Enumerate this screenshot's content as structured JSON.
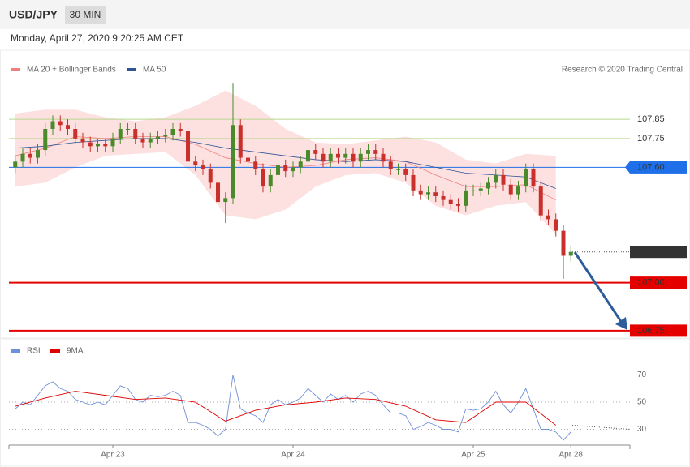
{
  "header": {
    "symbol": "USD/JPY",
    "interval": "30 MIN",
    "timestamp": "Monday, April 27, 2020 9:20:25 AM CET"
  },
  "credit": "Research © 2020 Trading Central",
  "chart_data": [
    {
      "type": "candlestick",
      "categories": [
        null,
        null,
        null,
        null,
        null,
        null,
        null,
        null,
        null,
        null,
        null,
        null,
        null,
        "Apr 23",
        null,
        null,
        null,
        null,
        null,
        null,
        null,
        null,
        null,
        null,
        null,
        null,
        null,
        null,
        null,
        null,
        null,
        null,
        null,
        null,
        null,
        null,
        null,
        "Apr 24",
        null,
        null,
        null,
        null,
        null,
        null,
        null,
        null,
        null,
        null,
        null,
        null,
        null,
        null,
        null,
        null,
        null,
        null,
        null,
        null,
        null,
        null,
        null,
        "Apr 25",
        null,
        null,
        null,
        null,
        null,
        null,
        null,
        null,
        null,
        null,
        null,
        null,
        "Apr 28"
      ],
      "open": [
        107.6,
        107.63,
        107.67,
        107.65,
        107.69,
        107.8,
        107.84,
        107.82,
        107.8,
        107.75,
        107.73,
        107.71,
        107.72,
        107.71,
        107.75,
        107.8,
        107.8,
        107.75,
        107.73,
        107.75,
        107.76,
        107.77,
        107.8,
        107.79,
        107.63,
        107.61,
        107.59,
        107.52,
        107.42,
        107.44,
        107.82,
        107.65,
        107.63,
        107.59,
        107.5,
        107.56,
        107.61,
        107.58,
        107.6,
        107.63,
        107.69,
        107.67,
        107.63,
        107.67,
        107.65,
        107.67,
        107.63,
        107.67,
        107.69,
        107.67,
        107.63,
        107.59,
        107.59,
        107.56,
        107.48,
        107.46,
        107.47,
        107.45,
        107.43,
        107.41,
        107.4,
        107.48,
        107.48,
        107.49,
        107.52,
        107.56,
        107.51,
        107.46,
        107.5,
        107.59,
        107.5,
        107.35,
        107.33,
        107.27,
        107.14
      ],
      "high": [
        107.66,
        107.7,
        107.7,
        107.72,
        107.83,
        107.87,
        107.87,
        107.85,
        107.83,
        107.78,
        107.76,
        107.75,
        107.75,
        107.78,
        107.83,
        107.83,
        107.83,
        107.78,
        107.78,
        107.79,
        107.8,
        107.83,
        107.83,
        107.82,
        107.66,
        107.64,
        107.62,
        107.55,
        107.47,
        108.04,
        107.85,
        107.68,
        107.66,
        107.62,
        107.59,
        107.64,
        107.64,
        107.63,
        107.66,
        107.72,
        107.72,
        107.7,
        107.7,
        107.7,
        107.7,
        107.7,
        107.7,
        107.72,
        107.72,
        107.7,
        107.66,
        107.62,
        107.62,
        107.59,
        107.51,
        107.5,
        107.5,
        107.48,
        107.46,
        107.44,
        107.51,
        107.51,
        107.52,
        107.55,
        107.59,
        107.59,
        107.54,
        107.53,
        107.62,
        107.62,
        107.53,
        107.38,
        107.36,
        107.3,
        107.19
      ],
      "low": [
        107.57,
        107.6,
        107.62,
        107.62,
        107.66,
        107.77,
        107.79,
        107.77,
        107.72,
        107.7,
        107.68,
        107.68,
        107.68,
        107.68,
        107.72,
        107.77,
        107.72,
        107.7,
        107.7,
        107.72,
        107.73,
        107.74,
        107.76,
        107.6,
        107.58,
        107.56,
        107.49,
        107.39,
        107.31,
        107.41,
        107.62,
        107.6,
        107.56,
        107.47,
        107.47,
        107.53,
        107.55,
        107.55,
        107.57,
        107.6,
        107.64,
        107.6,
        107.6,
        107.62,
        107.62,
        107.6,
        107.6,
        107.64,
        107.64,
        107.6,
        107.56,
        107.56,
        107.53,
        107.45,
        107.43,
        107.43,
        107.42,
        107.4,
        107.38,
        107.37,
        107.37,
        107.45,
        107.45,
        107.46,
        107.49,
        107.48,
        107.43,
        107.43,
        107.47,
        107.47,
        107.32,
        107.3,
        107.24,
        107.02,
        107.11
      ],
      "close": [
        107.63,
        107.67,
        107.65,
        107.69,
        107.8,
        107.84,
        107.82,
        107.8,
        107.75,
        107.73,
        107.71,
        107.72,
        107.71,
        107.75,
        107.8,
        107.8,
        107.75,
        107.73,
        107.75,
        107.76,
        107.77,
        107.8,
        107.79,
        107.63,
        107.61,
        107.59,
        107.52,
        107.42,
        107.44,
        107.82,
        107.65,
        107.63,
        107.59,
        107.5,
        107.56,
        107.61,
        107.58,
        107.6,
        107.63,
        107.69,
        107.67,
        107.63,
        107.67,
        107.65,
        107.67,
        107.63,
        107.67,
        107.69,
        107.67,
        107.63,
        107.59,
        107.59,
        107.56,
        107.48,
        107.46,
        107.47,
        107.45,
        107.43,
        107.41,
        107.4,
        107.48,
        107.48,
        107.49,
        107.52,
        107.56,
        107.51,
        107.46,
        107.5,
        107.59,
        107.5,
        107.35,
        107.33,
        107.27,
        107.14,
        107.16
      ],
      "up_color": "#4b8a2b",
      "down_color": "#c9302c",
      "series": [
        {
          "name": "MA 20 + Bollinger Bands",
          "color": "#f08080",
          "band_color": "#fde0e0",
          "x": [
            0,
            4,
            8,
            12,
            16,
            20,
            24,
            28,
            32,
            36,
            40,
            44,
            48,
            52,
            56,
            60,
            64,
            68,
            72
          ],
          "values": [
            107.66,
            107.7,
            107.76,
            107.75,
            107.76,
            107.76,
            107.72,
            107.65,
            107.62,
            107.6,
            107.61,
            107.64,
            107.65,
            107.63,
            107.56,
            107.5,
            107.5,
            107.51,
            107.43
          ],
          "upper": [
            107.88,
            107.9,
            107.9,
            107.86,
            107.84,
            107.86,
            107.92,
            108.0,
            107.92,
            107.8,
            107.73,
            107.72,
            107.74,
            107.76,
            107.73,
            107.64,
            107.62,
            107.67,
            107.66
          ],
          "lower": [
            107.5,
            107.52,
            107.6,
            107.66,
            107.67,
            107.68,
            107.56,
            107.35,
            107.33,
            107.38,
            107.5,
            107.56,
            107.57,
            107.52,
            107.4,
            107.35,
            107.4,
            107.42,
            107.25
          ]
        },
        {
          "name": "MA 50",
          "color": "#2f5597",
          "x": [
            0,
            4,
            8,
            12,
            16,
            20,
            24,
            28,
            32,
            36,
            40,
            44,
            48,
            52,
            56,
            60,
            64,
            68,
            72
          ],
          "values": [
            107.7,
            107.71,
            107.73,
            107.74,
            107.75,
            107.75,
            107.73,
            107.7,
            107.68,
            107.66,
            107.64,
            107.63,
            107.64,
            107.63,
            107.6,
            107.57,
            107.56,
            107.55,
            107.49
          ]
        }
      ],
      "levels": [
        {
          "value": 107.85,
          "color": "#b9d88e",
          "text_color": "#5d9a24",
          "style": "plain"
        },
        {
          "value": 107.75,
          "color": "#b9d88e",
          "text_color": "#5d9a24",
          "style": "plain"
        },
        {
          "value": 107.6,
          "label": "107.60",
          "color": "#1e6fe8",
          "style": "box"
        },
        {
          "value": 107.16,
          "color": "#333333",
          "style": "current"
        },
        {
          "value": 107,
          "label": "107.00",
          "color": "#e50000",
          "style": "box"
        },
        {
          "value": 106.75,
          "color": "#e50000",
          "style": "box"
        }
      ],
      "ylim": [
        106.72,
        108.07
      ]
    },
    {
      "type": "line",
      "series": [
        {
          "name": "RSI",
          "color": "#6f8fd8",
          "values": [
            45,
            50,
            48,
            55,
            62,
            65,
            60,
            58,
            52,
            50,
            48,
            50,
            48,
            55,
            62,
            60,
            52,
            50,
            55,
            54,
            55,
            58,
            55,
            35,
            35,
            33,
            30,
            25,
            30,
            70,
            45,
            42,
            40,
            35,
            48,
            52,
            48,
            50,
            53,
            60,
            55,
            50,
            56,
            52,
            55,
            50,
            56,
            58,
            55,
            48,
            42,
            42,
            40,
            30,
            32,
            35,
            33,
            30,
            30,
            28,
            45,
            44,
            45,
            50,
            58,
            48,
            42,
            50,
            60,
            45,
            30,
            30,
            28,
            22,
            28
          ]
        },
        {
          "name": "9MA",
          "color": "#e00000",
          "x": [
            0,
            4,
            8,
            12,
            16,
            20,
            24,
            28,
            32,
            36,
            40,
            44,
            48,
            52,
            56,
            60,
            64,
            68,
            72
          ],
          "values": [
            47,
            53,
            58,
            55,
            52,
            53,
            50,
            36,
            44,
            48,
            50,
            53,
            52,
            47,
            37,
            35,
            50,
            50,
            33
          ]
        }
      ],
      "ylim": [
        20,
        80
      ],
      "yticks": [
        30,
        50,
        70
      ]
    }
  ]
}
